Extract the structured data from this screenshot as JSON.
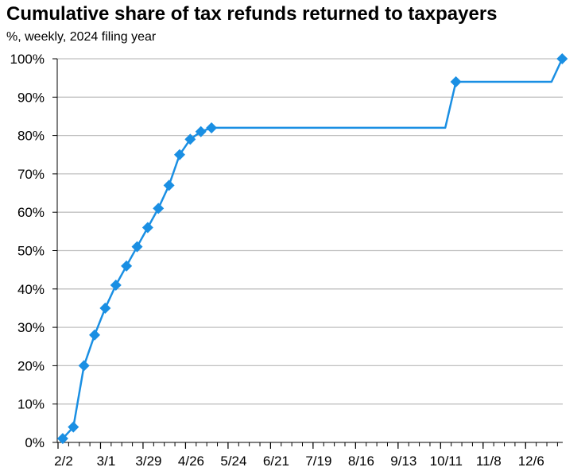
{
  "chart_data": {
    "type": "line",
    "title": "Cumulative share of tax refunds returned to taxpayers",
    "subtitle": "%, weekly, 2024 filing year",
    "xlabel": "",
    "ylabel": "",
    "x_tick_labels": [
      "2/2",
      "3/1",
      "3/29",
      "4/26",
      "5/24",
      "6/21",
      "7/19",
      "8/16",
      "9/13",
      "10/11",
      "11/8",
      "12/6"
    ],
    "y_tick_labels": [
      "0%",
      "10%",
      "20%",
      "30%",
      "40%",
      "50%",
      "60%",
      "70%",
      "80%",
      "90%",
      "100%"
    ],
    "ylim": [
      0,
      100
    ],
    "xlim_days_note": "",
    "grid": "horizontal",
    "series": [
      {
        "color": "#1a8fe3",
        "points": [
          {
            "x": "2024-02-03",
            "y": 1
          },
          {
            "x": "2024-02-10",
            "y": 4
          },
          {
            "x": "2024-02-17",
            "y": 20
          },
          {
            "x": "2024-02-24",
            "y": 28
          },
          {
            "x": "2024-03-02",
            "y": 35
          },
          {
            "x": "2024-03-09",
            "y": 41
          },
          {
            "x": "2024-03-16",
            "y": 46
          },
          {
            "x": "2024-03-23",
            "y": 51
          },
          {
            "x": "2024-03-30",
            "y": 56
          },
          {
            "x": "2024-04-06",
            "y": 61
          },
          {
            "x": "2024-04-13",
            "y": 67
          },
          {
            "x": "2024-04-20",
            "y": 75
          },
          {
            "x": "2024-04-27",
            "y": 79
          },
          {
            "x": "2024-05-04",
            "y": 81
          },
          {
            "x": "2024-05-11",
            "y": 82
          },
          {
            "x": "2024-10-12",
            "y": 82,
            "marker": false
          },
          {
            "x": "2024-10-19",
            "y": 94
          },
          {
            "x": "2024-12-21",
            "y": 94,
            "marker": false
          },
          {
            "x": "2024-12-28",
            "y": 100
          }
        ]
      }
    ]
  }
}
